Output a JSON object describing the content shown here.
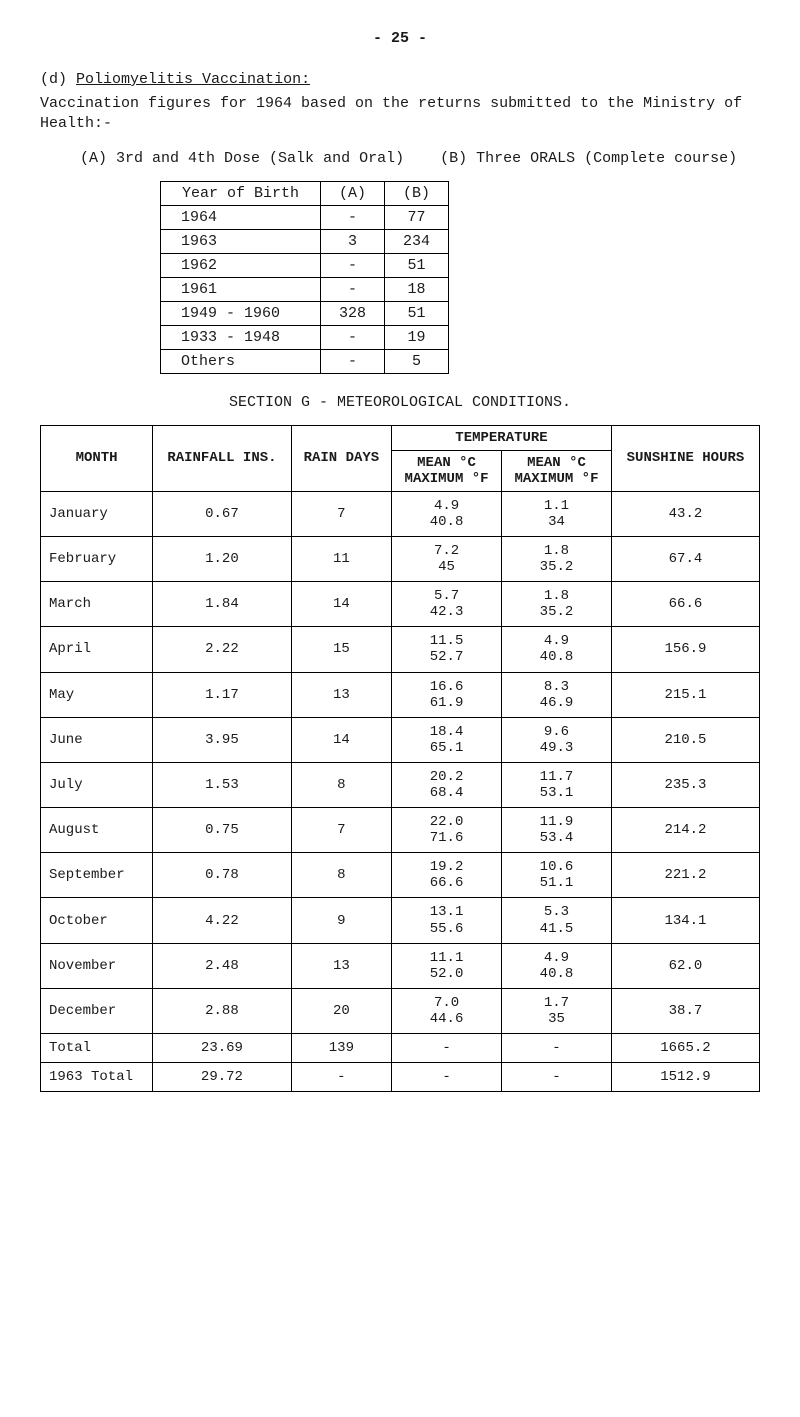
{
  "page_number": "- 25 -",
  "section_d": {
    "label": "(d)",
    "heading": "Poliomyelitis Vaccination:",
    "intro": "Vaccination figures for 1964 based on the returns submitted to the Ministry of Health:-",
    "sub": {
      "a_label": "(A)",
      "a_text": "3rd and 4th Dose (Salk and Oral)",
      "b_label": "(B)",
      "b_text": "Three ORALS (Complete course)"
    }
  },
  "vax_table": {
    "headers": {
      "birth": "Year of Birth",
      "a": "(A)",
      "b": "(B)"
    },
    "rows": [
      {
        "year": "1964",
        "a": "-",
        "b": "77"
      },
      {
        "year": "1963",
        "a": "3",
        "b": "234"
      },
      {
        "year": "1962",
        "a": "-",
        "b": "51"
      },
      {
        "year": "1961",
        "a": "-",
        "b": "18"
      },
      {
        "year": "1949 - 1960",
        "a": "328",
        "b": "51"
      },
      {
        "year": "1933 - 1948",
        "a": "-",
        "b": "19"
      },
      {
        "year": "Others",
        "a": "-",
        "b": "5"
      }
    ]
  },
  "section_g_title": "SECTION  G  -  METEOROLOGICAL  CONDITIONS.",
  "met_table": {
    "headers": {
      "month": "MONTH",
      "rainfall": "RAINFALL INS.",
      "raindays": "RAIN DAYS",
      "temperature": "TEMPERATURE",
      "mean_max_c": "MEAN  °C",
      "mean_max_f": "MAXIMUM  °F",
      "mean_min_c": "MEAN  °C",
      "mean_min_f": "MAXIMUM  °F",
      "sunshine": "SUNSHINE HOURS"
    },
    "rows": [
      {
        "month": "January",
        "rain": "0.67",
        "days": "7",
        "tmaxA": "4.9",
        "tmaxB": "40.8",
        "tminA": "1.1",
        "tminB": "34",
        "sun": "43.2"
      },
      {
        "month": "February",
        "rain": "1.20",
        "days": "11",
        "tmaxA": "7.2",
        "tmaxB": "45",
        "tminA": "1.8",
        "tminB": "35.2",
        "sun": "67.4"
      },
      {
        "month": "March",
        "rain": "1.84",
        "days": "14",
        "tmaxA": "5.7",
        "tmaxB": "42.3",
        "tminA": "1.8",
        "tminB": "35.2",
        "sun": "66.6"
      },
      {
        "month": "April",
        "rain": "2.22",
        "days": "15",
        "tmaxA": "11.5",
        "tmaxB": "52.7",
        "tminA": "4.9",
        "tminB": "40.8",
        "sun": "156.9"
      },
      {
        "month": "May",
        "rain": "1.17",
        "days": "13",
        "tmaxA": "16.6",
        "tmaxB": "61.9",
        "tminA": "8.3",
        "tminB": "46.9",
        "sun": "215.1"
      },
      {
        "month": "June",
        "rain": "3.95",
        "days": "14",
        "tmaxA": "18.4",
        "tmaxB": "65.1",
        "tminA": "9.6",
        "tminB": "49.3",
        "sun": "210.5"
      },
      {
        "month": "July",
        "rain": "1.53",
        "days": "8",
        "tmaxA": "20.2",
        "tmaxB": "68.4",
        "tminA": "11.7",
        "tminB": "53.1",
        "sun": "235.3"
      },
      {
        "month": "August",
        "rain": "0.75",
        "days": "7",
        "tmaxA": "22.0",
        "tmaxB": "71.6",
        "tminA": "11.9",
        "tminB": "53.4",
        "sun": "214.2"
      },
      {
        "month": "September",
        "rain": "0.78",
        "days": "8",
        "tmaxA": "19.2",
        "tmaxB": "66.6",
        "tminA": "10.6",
        "tminB": "51.1",
        "sun": "221.2"
      },
      {
        "month": "October",
        "rain": "4.22",
        "days": "9",
        "tmaxA": "13.1",
        "tmaxB": "55.6",
        "tminA": "5.3",
        "tminB": "41.5",
        "sun": "134.1"
      },
      {
        "month": "November",
        "rain": "2.48",
        "days": "13",
        "tmaxA": "11.1",
        "tmaxB": "52.0",
        "tminA": "4.9",
        "tminB": "40.8",
        "sun": "62.0"
      },
      {
        "month": "December",
        "rain": "2.88",
        "days": "20",
        "tmaxA": "7.0",
        "tmaxB": "44.6",
        "tminA": "1.7",
        "tminB": "35",
        "sun": "38.7"
      },
      {
        "month": "Total",
        "rain": "23.69",
        "days": "139",
        "tmaxA": "-",
        "tmaxB": "",
        "tminA": "-",
        "tminB": "",
        "sun": "1665.2"
      },
      {
        "month": "1963 Total",
        "rain": "29.72",
        "days": "-",
        "tmaxA": "-",
        "tmaxB": "",
        "tminA": "-",
        "tminB": "",
        "sun": "1512.9"
      }
    ]
  }
}
